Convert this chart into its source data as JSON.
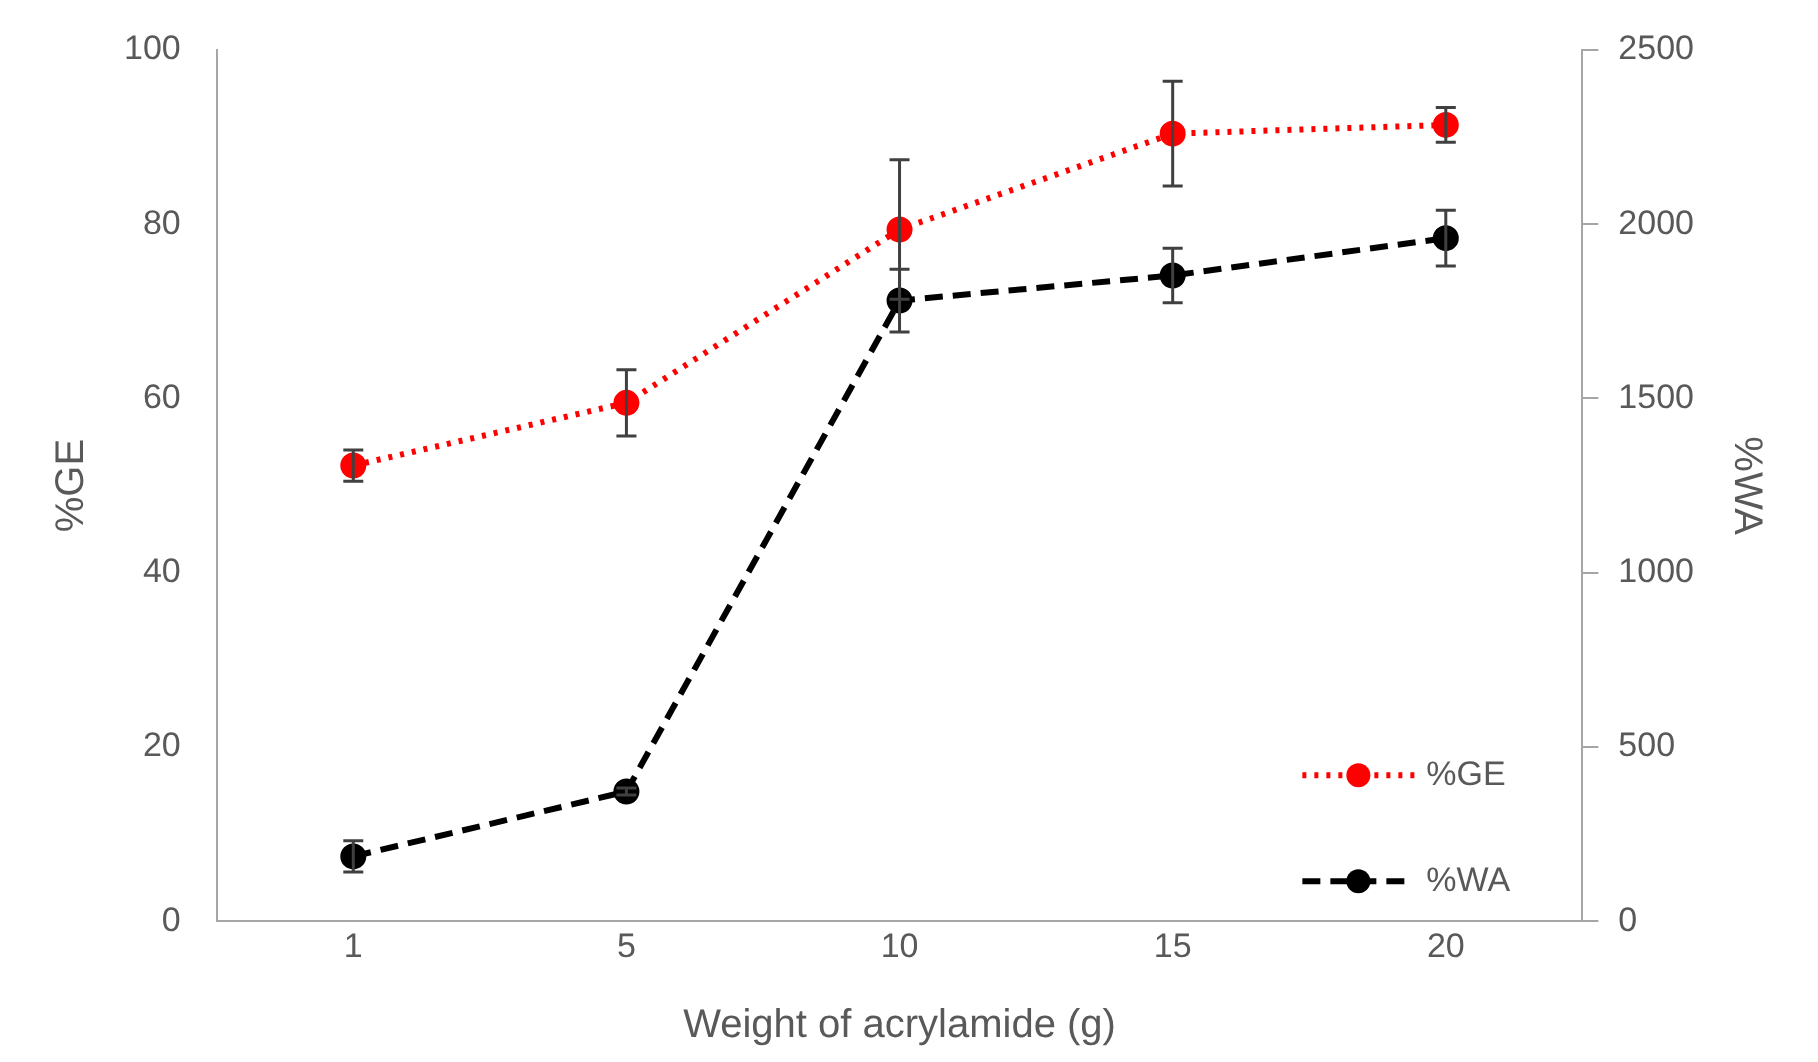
{
  "chart_data": {
    "type": "line",
    "xlabel": "Weight of acrylamide (g)",
    "ylabel": "%GE",
    "y2label": "%WA",
    "categories": [
      "1",
      "5",
      "10",
      "15",
      "20"
    ],
    "series": [
      {
        "name": "%GE",
        "color": "#ff0000",
        "line_style": "dotted",
        "values": [
          52.3,
          59.5,
          79.4,
          90.4,
          91.4
        ],
        "errors": [
          1.8,
          3.8,
          8,
          6,
          2
        ]
      },
      {
        "name": "%WA",
        "color": "#000000",
        "line_style": "dashed",
        "axis": "y2",
        "values": [
          186,
          372,
          1781,
          1853,
          1960
        ],
        "errors": [
          45,
          10,
          90,
          78,
          80
        ]
      }
    ],
    "ylim": [
      0,
      100
    ],
    "yticks": [
      0,
      20,
      40,
      60,
      80,
      100
    ],
    "y2lim": [
      0,
      2500
    ],
    "y2ticks": [
      0,
      500,
      1000,
      1500,
      2000,
      2500
    ],
    "marker": "circle",
    "grid": false,
    "legend": "bottom right"
  }
}
